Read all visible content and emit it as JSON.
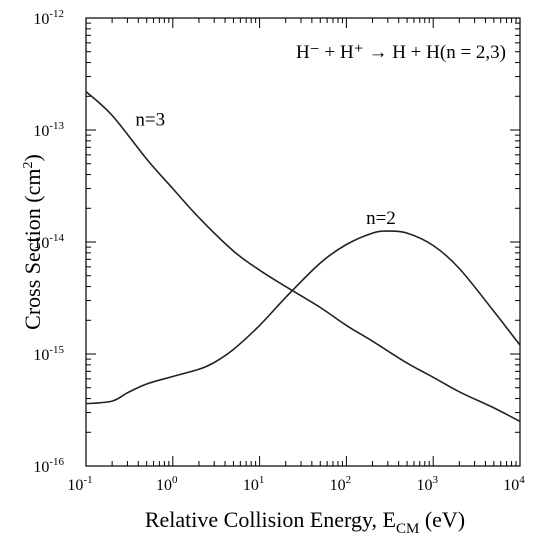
{
  "chart_data": {
    "type": "line",
    "title": "",
    "annotation": {
      "equation_left": "H⁻ + H⁺ → H + H",
      "equation_right": "(n = 2,3)"
    },
    "xlabel": {
      "text": "Relative Collision Energy, E",
      "subscript": "CM",
      "unit": " (eV)"
    },
    "ylabel": {
      "text": "Cross Section (cm",
      "superscript": "2",
      "close": ")"
    },
    "x_scale": "log",
    "y_scale": "log",
    "xlim": [
      0.1,
      10000
    ],
    "ylim": [
      1e-16,
      1e-12
    ],
    "x_ticks": [
      {
        "value": 0.1,
        "base": "10",
        "exp": "-1"
      },
      {
        "value": 1,
        "base": "10",
        "exp": "0"
      },
      {
        "value": 10,
        "base": "10",
        "exp": "1"
      },
      {
        "value": 100,
        "base": "10",
        "exp": "2"
      },
      {
        "value": 1000,
        "base": "10",
        "exp": "3"
      },
      {
        "value": 10000,
        "base": "10",
        "exp": "4"
      }
    ],
    "y_ticks": [
      {
        "value": 1e-16,
        "base": "10",
        "exp": "-16"
      },
      {
        "value": 1e-15,
        "base": "10",
        "exp": "-15"
      },
      {
        "value": 1e-14,
        "base": "10",
        "exp": "-14"
      },
      {
        "value": 1e-13,
        "base": "10",
        "exp": "-13"
      },
      {
        "value": 1e-12,
        "base": "10",
        "exp": "-12"
      }
    ],
    "grid": false,
    "legend": "none",
    "series": [
      {
        "name": "n=3",
        "label_at": {
          "x": 0.55,
          "y": 1.1e-13
        },
        "x": [
          0.1,
          0.2,
          0.5,
          1,
          2,
          5,
          10,
          20,
          50,
          100,
          200,
          500,
          1000,
          2000,
          5000,
          10000
        ],
        "y": [
          2.2e-13,
          1.35e-13,
          5.5e-14,
          3e-14,
          1.65e-14,
          8.3e-15,
          5.6e-15,
          4e-15,
          2.6e-15,
          1.8e-15,
          1.3e-15,
          8.3e-16,
          6.2e-16,
          4.6e-16,
          3.3e-16,
          2.5e-16
        ]
      },
      {
        "name": "n=2",
        "label_at": {
          "x": 250,
          "y": 1.45e-14
        },
        "x": [
          0.1,
          0.2,
          0.3,
          0.5,
          1,
          2,
          3,
          5,
          10,
          20,
          50,
          100,
          200,
          300,
          500,
          1000,
          2000,
          5000,
          10000
        ],
        "y": [
          3.6e-16,
          3.8e-16,
          4.5e-16,
          5.4e-16,
          6.3e-16,
          7.3e-16,
          8.4e-16,
          1.1e-15,
          1.8e-15,
          3.2e-15,
          6.5e-15,
          9.5e-15,
          1.2e-14,
          1.25e-14,
          1.2e-14,
          9.3e-15,
          5.8e-15,
          2.4e-15,
          1.2e-15
        ]
      }
    ]
  }
}
